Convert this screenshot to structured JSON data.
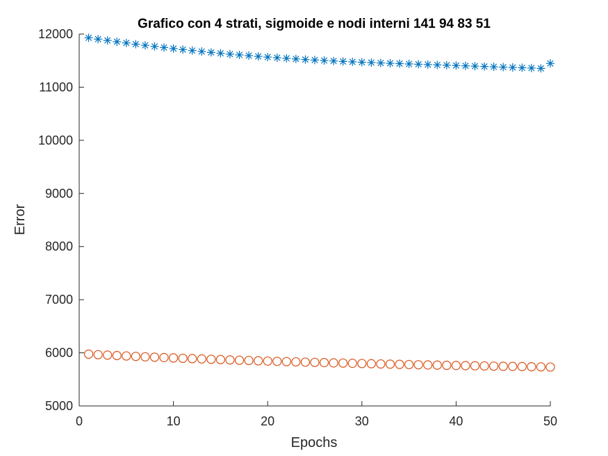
{
  "chart_data": {
    "type": "scatter",
    "title": "Grafico con 4 strati, sigmoide e nodi interni 141   94   83   51",
    "xlabel": "Epochs",
    "ylabel": "Error",
    "xlim": [
      0,
      50
    ],
    "ylim": [
      5000,
      12000
    ],
    "xticks": [
      0,
      10,
      20,
      30,
      40,
      50
    ],
    "yticks": [
      5000,
      6000,
      7000,
      8000,
      9000,
      10000,
      11000,
      12000
    ],
    "grid": false,
    "legend": "none",
    "series": [
      {
        "marker": "asterisk",
        "color": "#0072BD",
        "x": [
          1,
          2,
          3,
          4,
          5,
          6,
          7,
          8,
          9,
          10,
          11,
          12,
          13,
          14,
          15,
          16,
          17,
          18,
          19,
          20,
          21,
          22,
          23,
          24,
          25,
          26,
          27,
          28,
          29,
          30,
          31,
          32,
          33,
          34,
          35,
          36,
          37,
          38,
          39,
          40,
          41,
          42,
          43,
          44,
          45,
          46,
          47,
          48,
          49,
          50
        ],
        "values": [
          11930,
          11905,
          11880,
          11856,
          11833,
          11810,
          11788,
          11767,
          11747,
          11727,
          11708,
          11690,
          11672,
          11655,
          11639,
          11623,
          11608,
          11594,
          11580,
          11567,
          11555,
          11543,
          11532,
          11521,
          11511,
          11502,
          11493,
          11485,
          11477,
          11470,
          11463,
          11456,
          11450,
          11444,
          11438,
          11432,
          11426,
          11420,
          11414,
          11408,
          11402,
          11396,
          11390,
          11384,
          11378,
          11372,
          11366,
          11360,
          11354,
          11448
        ]
      },
      {
        "marker": "circle",
        "color": "#D95319",
        "x": [
          1,
          2,
          3,
          4,
          5,
          6,
          7,
          8,
          9,
          10,
          11,
          12,
          13,
          14,
          15,
          16,
          17,
          18,
          19,
          20,
          21,
          22,
          23,
          24,
          25,
          26,
          27,
          28,
          29,
          30,
          31,
          32,
          33,
          34,
          35,
          36,
          37,
          38,
          39,
          40,
          41,
          42,
          43,
          44,
          45,
          46,
          47,
          48,
          49,
          50
        ],
        "values": [
          5975,
          5966,
          5957,
          5949,
          5941,
          5933,
          5925,
          5918,
          5911,
          5904,
          5897,
          5891,
          5885,
          5879,
          5873,
          5867,
          5861,
          5856,
          5850,
          5845,
          5840,
          5835,
          5830,
          5825,
          5820,
          5816,
          5811,
          5807,
          5803,
          5799,
          5795,
          5791,
          5787,
          5783,
          5779,
          5776,
          5772,
          5769,
          5765,
          5762,
          5759,
          5756,
          5753,
          5750,
          5747,
          5744,
          5741,
          5738,
          5735,
          5732
        ]
      }
    ]
  }
}
